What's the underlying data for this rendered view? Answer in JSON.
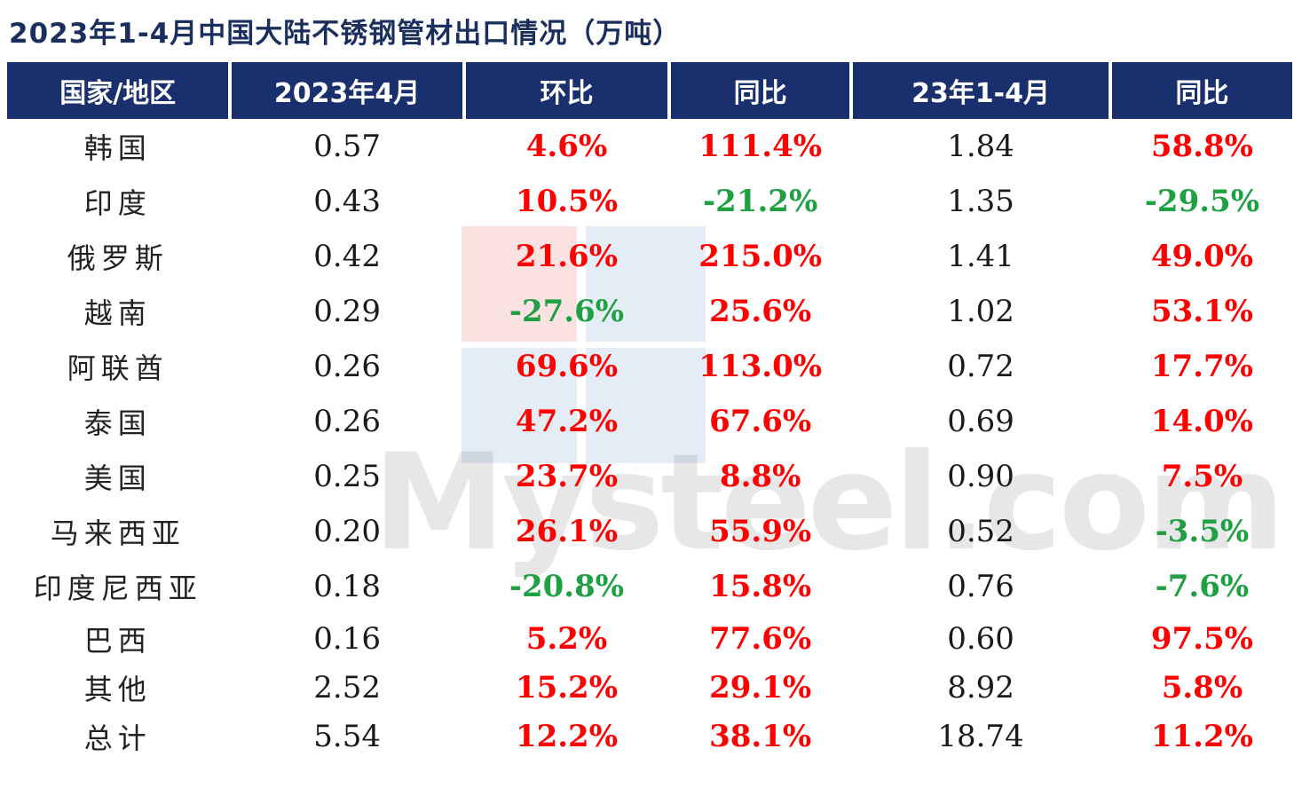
{
  "title": "2023年1-4月中国大陆不锈钢管材出口情况（万吨）",
  "colors": {
    "header_bg": "#1a2f6e",
    "positive": "#ff0000",
    "negative": "#1fa043"
  },
  "chart_data": {
    "type": "table",
    "title": "2023年1-4月中国大陆不锈钢管材出口情况（万吨）",
    "columns": [
      "国家/地区",
      "2023年4月",
      "环比",
      "同比",
      "23年1-4月",
      "同比"
    ],
    "rows": [
      [
        "韩国",
        "0.57",
        "4.6%",
        "111.4%",
        "1.84",
        "58.8%"
      ],
      [
        "印度",
        "0.43",
        "10.5%",
        "-21.2%",
        "1.35",
        "-29.5%"
      ],
      [
        "俄罗斯",
        "0.42",
        "21.6%",
        "215.0%",
        "1.41",
        "49.0%"
      ],
      [
        "越南",
        "0.29",
        "-27.6%",
        "25.6%",
        "1.02",
        "53.1%"
      ],
      [
        "阿联酋",
        "0.26",
        "69.6%",
        "113.0%",
        "0.72",
        "17.7%"
      ],
      [
        "泰国",
        "0.26",
        "47.2%",
        "67.6%",
        "0.69",
        "14.0%"
      ],
      [
        "美国",
        "0.25",
        "23.7%",
        "8.8%",
        "0.90",
        "7.5%"
      ],
      [
        "马来西亚",
        "0.20",
        "26.1%",
        "55.9%",
        "0.52",
        "-3.5%"
      ],
      [
        "印度尼西亚",
        "0.18",
        "-20.8%",
        "15.8%",
        "0.76",
        "-7.6%"
      ],
      [
        "巴西",
        "0.16",
        "5.2%",
        "77.6%",
        "0.60",
        "97.5%"
      ],
      [
        "其他",
        "2.52",
        "15.2%",
        "29.1%",
        "8.92",
        "5.8%"
      ],
      [
        "总计",
        "5.54",
        "12.2%",
        "38.1%",
        "18.74",
        "11.2%"
      ]
    ]
  },
  "watermark": {
    "text": "Mysteel.com",
    "sub": "mysteel.com"
  }
}
